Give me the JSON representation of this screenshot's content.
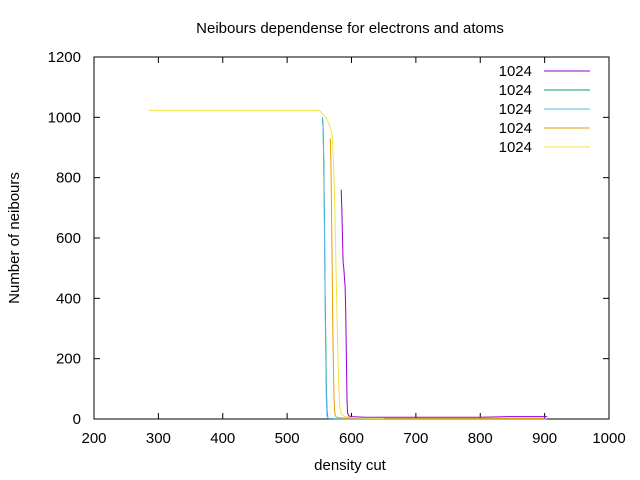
{
  "chart_data": {
    "type": "line",
    "title": "Neibours dependense for electrons and atoms",
    "xlabel": "density cut",
    "ylabel": "Number of neibours",
    "xlim": [
      200,
      1000
    ],
    "ylim": [
      0,
      1200
    ],
    "xticks": [
      200,
      300,
      400,
      500,
      600,
      700,
      800,
      900,
      1000
    ],
    "yticks": [
      0,
      200,
      400,
      600,
      800,
      1000,
      1200
    ],
    "grid": false,
    "legend_position": "top-right",
    "series": [
      {
        "name": "1024",
        "color": "#9400d3",
        "x": [
          584,
          585,
          586,
          587,
          588,
          589,
          590,
          591,
          592,
          593,
          594,
          596,
          600,
          620,
          650,
          700,
          750,
          800,
          850,
          880,
          900,
          904
        ],
        "y": [
          760,
          700,
          600,
          520,
          500,
          470,
          440,
          360,
          200,
          60,
          20,
          10,
          8,
          6,
          6,
          6,
          6,
          6,
          8,
          8,
          8,
          8
        ]
      },
      {
        "name": "1024",
        "color": "#009e73",
        "x": [
          555,
          556,
          557,
          558,
          559,
          560,
          561,
          562,
          563,
          564,
          566,
          580,
          620,
          700,
          800,
          900,
          904
        ],
        "y": [
          1000,
          960,
          850,
          650,
          420,
          250,
          100,
          30,
          8,
          2,
          1,
          1,
          1,
          1,
          1,
          1,
          1
        ]
      },
      {
        "name": "1024",
        "color": "#56b4e9",
        "x": [
          555,
          556,
          557,
          558,
          559,
          560,
          561,
          562,
          564,
          580,
          620,
          700,
          800,
          900,
          904
        ],
        "y": [
          1000,
          950,
          820,
          620,
          380,
          200,
          60,
          10,
          2,
          1,
          1,
          1,
          1,
          1,
          1
        ]
      },
      {
        "name": "1024",
        "color": "#e69f00",
        "x": [
          567,
          568,
          569,
          570,
          571,
          572,
          573,
          574,
          575,
          577,
          580,
          590,
          620,
          700,
          800,
          900
        ],
        "y": [
          930,
          850,
          700,
          500,
          300,
          160,
          60,
          20,
          10,
          6,
          4,
          3,
          3,
          2,
          2,
          2
        ]
      },
      {
        "name": "1024",
        "color": "#f0e442",
        "x": [
          285,
          300,
          400,
          500,
          550,
          560,
          565,
          570,
          572,
          574,
          576,
          578,
          580,
          582,
          585,
          590,
          600,
          620,
          650
        ],
        "y": [
          1023,
          1023,
          1023,
          1023,
          1023,
          1000,
          980,
          940,
          850,
          700,
          500,
          300,
          120,
          40,
          15,
          8,
          5,
          3,
          2
        ]
      }
    ]
  }
}
